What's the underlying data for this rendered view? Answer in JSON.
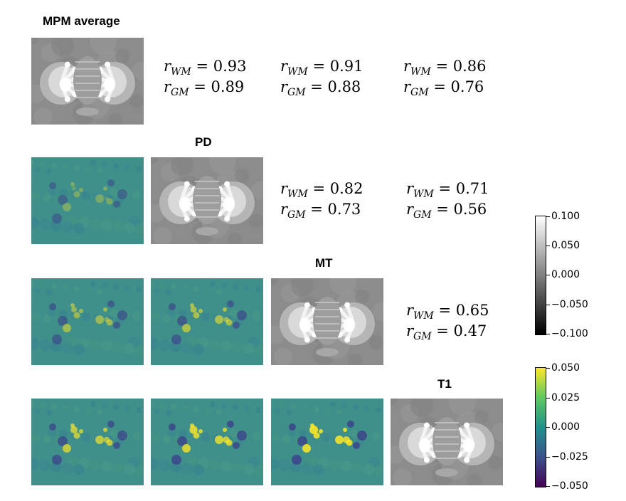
{
  "titles": {
    "mpm_average": "MPM average",
    "pd": "PD",
    "mt": "MT",
    "t1": "T1"
  },
  "correlations": {
    "r0c1": {
      "wm": "0.93",
      "gm": "0.89"
    },
    "r0c2": {
      "wm": "0.91",
      "gm": "0.88"
    },
    "r0c3": {
      "wm": "0.86",
      "gm": "0.76"
    },
    "r1c2": {
      "wm": "0.82",
      "gm": "0.73"
    },
    "r1c3": {
      "wm": "0.71",
      "gm": "0.56"
    },
    "r2c3": {
      "wm": "0.65",
      "gm": "0.47"
    }
  },
  "symbols": {
    "r": "r",
    "wm_sub": "WM",
    "gm_sub": "GM",
    "eq": " = "
  },
  "colorbars": {
    "gray": {
      "cmap": "gray",
      "min": -0.1,
      "max": 0.1,
      "ticks": [
        "0.100",
        "0.050",
        "0.000",
        "−0.050",
        "−0.100"
      ]
    },
    "viridis": {
      "cmap": "viridis",
      "min": -0.05,
      "max": 0.05,
      "ticks": [
        "0.050",
        "0.025",
        "0.000",
        "−0.025",
        "−0.050"
      ]
    }
  },
  "colors": {
    "diff_background": "#3f8f8a",
    "positive": "#f2e32a",
    "negative": "#3b3a8a"
  }
}
